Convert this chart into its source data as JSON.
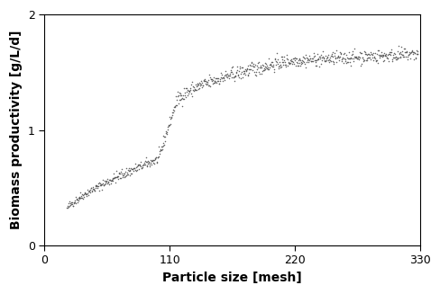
{
  "xlabel": "Particle size [mesh]",
  "ylabel": "Biomass productivity [g/L/d]",
  "xlim": [
    0,
    330
  ],
  "ylim": [
    0,
    2
  ],
  "xticks": [
    0,
    110,
    220,
    330
  ],
  "yticks": [
    0,
    1,
    2
  ],
  "dot_color": "#555555",
  "background_color": "#ffffff",
  "xlabel_fontsize": 10,
  "ylabel_fontsize": 10,
  "tick_fontsize": 9,
  "figsize": [
    4.89,
    3.27
  ],
  "dpi": 100,
  "seed": 42,
  "x_start": 20,
  "x_end": 328,
  "n_points": 800
}
